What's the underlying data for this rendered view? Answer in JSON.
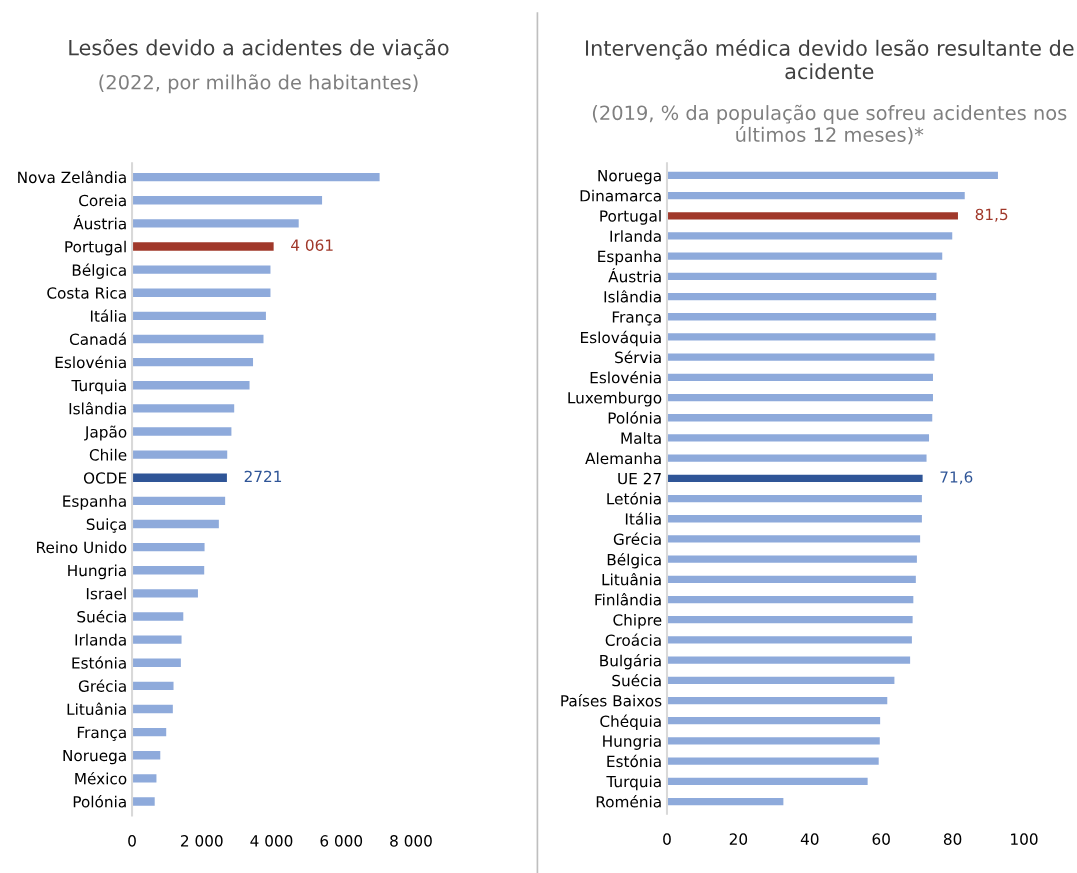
{
  "chart_data": [
    {
      "type": "bar",
      "orientation": "horizontal",
      "title": "Lesões devido a acidentes de viação",
      "subtitle": "(2022, por milhão de habitantes)",
      "categories": [
        "Nova Zelândia",
        "Coreia",
        "Áustria",
        "Portugal",
        "Bélgica",
        "Costa Rica",
        "Itália",
        "Canadá",
        "Eslovénia",
        "Turquia",
        "Islândia",
        "Japão",
        "Chile",
        "OCDE",
        "Espanha",
        "Suiça",
        "Reino Unido",
        "Hungria",
        "Israel",
        "Suécia",
        "Irlanda",
        "Estónia",
        "Grécia",
        "Lituânia",
        "França",
        "Noruega",
        "México",
        "Polónia"
      ],
      "values": [
        7100,
        5450,
        4780,
        4061,
        3970,
        3970,
        3840,
        3770,
        3470,
        3370,
        2930,
        2850,
        2730,
        2721,
        2670,
        2490,
        2080,
        2070,
        1890,
        1470,
        1420,
        1400,
        1190,
        1170,
        980,
        810,
        700,
        650
      ],
      "colors": [
        "#8eaadb",
        "#8eaadb",
        "#8eaadb",
        "#a0382a",
        "#8eaadb",
        "#8eaadb",
        "#8eaadb",
        "#8eaadb",
        "#8eaadb",
        "#8eaadb",
        "#8eaadb",
        "#8eaadb",
        "#8eaadb",
        "#2f5597",
        "#8eaadb",
        "#8eaadb",
        "#8eaadb",
        "#8eaadb",
        "#8eaadb",
        "#8eaadb",
        "#8eaadb",
        "#8eaadb",
        "#8eaadb",
        "#8eaadb",
        "#8eaadb",
        "#8eaadb",
        "#8eaadb",
        "#8eaadb"
      ],
      "value_labels": [
        null,
        null,
        null,
        "4 061",
        null,
        null,
        null,
        null,
        null,
        null,
        null,
        null,
        null,
        "2721",
        null,
        null,
        null,
        null,
        null,
        null,
        null,
        null,
        null,
        null,
        null,
        null,
        null,
        null
      ],
      "xlim": [
        0,
        8000
      ],
      "xticks": [
        0,
        {
          "value": 2000,
          "label": "2 000"
        },
        {
          "value": 4000,
          "label": "4 000"
        },
        {
          "value": 6000,
          "label": "6 000"
        },
        {
          "value": 8000,
          "label": "8 000"
        }
      ],
      "grid": false,
      "legend": false
    },
    {
      "type": "bar",
      "orientation": "horizontal",
      "title": "Intervenção médica devido lesão resultante de acidente",
      "subtitle": "(2019, % da população que sofreu acidentes nos últimos 12 meses)*",
      "categories": [
        "Noruega",
        "Dinamarca",
        "Portugal",
        "Irlanda",
        "Espanha",
        "Áustria",
        "Islândia",
        "França",
        "Eslováquia",
        "Sérvia",
        "Eslovénia",
        "Luxemburgo",
        "Polónia",
        "Malta",
        "Alemanha",
        "UE 27",
        "Letónia",
        "Itália",
        "Grécia",
        "Bélgica",
        "Lituânia",
        "Finlândia",
        "Chipre",
        "Croácia",
        "Bulgária",
        "Suécia",
        "Países Baixos",
        "Chéquia",
        "Hungria",
        "Estónia",
        "Turquia",
        "Roménia"
      ],
      "values": [
        92.7,
        83.4,
        81.5,
        79.9,
        77.1,
        75.5,
        75.4,
        75.4,
        75.2,
        74.9,
        74.5,
        74.5,
        74.3,
        73.4,
        72.7,
        71.6,
        71.4,
        71.4,
        70.9,
        70.0,
        69.7,
        69.0,
        68.8,
        68.6,
        68.1,
        63.7,
        61.7,
        59.7,
        59.6,
        59.3,
        56.2,
        32.6
      ],
      "colors": [
        "#8eaadb",
        "#8eaadb",
        "#a0382a",
        "#8eaadb",
        "#8eaadb",
        "#8eaadb",
        "#8eaadb",
        "#8eaadb",
        "#8eaadb",
        "#8eaadb",
        "#8eaadb",
        "#8eaadb",
        "#8eaadb",
        "#8eaadb",
        "#8eaadb",
        "#2f5597",
        "#8eaadb",
        "#8eaadb",
        "#8eaadb",
        "#8eaadb",
        "#8eaadb",
        "#8eaadb",
        "#8eaadb",
        "#8eaadb",
        "#8eaadb",
        "#8eaadb",
        "#8eaadb",
        "#8eaadb",
        "#8eaadb",
        "#8eaadb",
        "#8eaadb",
        "#8eaadb"
      ],
      "value_labels": [
        null,
        null,
        "81,5",
        null,
        null,
        null,
        null,
        null,
        null,
        null,
        null,
        null,
        null,
        null,
        null,
        "71,6",
        null,
        null,
        null,
        null,
        null,
        null,
        null,
        null,
        null,
        null,
        null,
        null,
        null,
        null,
        null,
        null
      ],
      "xlim": [
        0,
        100
      ],
      "xticks": [
        0,
        20,
        40,
        60,
        80,
        100
      ],
      "grid": false,
      "legend": false
    }
  ]
}
